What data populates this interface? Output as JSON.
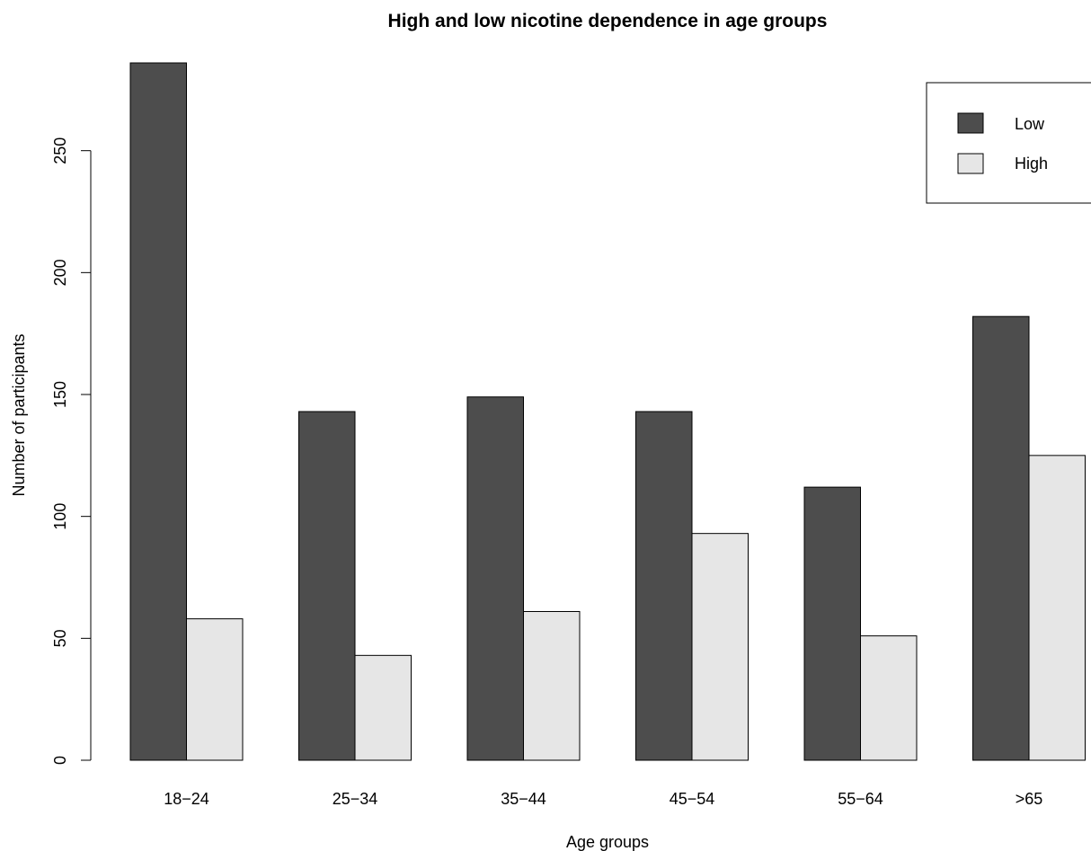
{
  "chart_data": {
    "type": "bar",
    "title": "High and low nicotine dependence in age groups",
    "xlabel": "Age groups",
    "ylabel": "Number of participants",
    "categories": [
      "18−24",
      "25−34",
      "35−44",
      "45−54",
      "55−64",
      ">65"
    ],
    "series": [
      {
        "name": "Low",
        "color": "#4d4d4d",
        "values": [
          286,
          143,
          149,
          143,
          112,
          182
        ]
      },
      {
        "name": "High",
        "color": "#e6e6e6",
        "values": [
          58,
          43,
          61,
          93,
          51,
          125
        ]
      }
    ],
    "y_ticks": [
      0,
      50,
      100,
      150,
      200,
      250
    ],
    "ylim": [
      0,
      286
    ],
    "grid": false,
    "legend_position": "top-right",
    "stroke_color": "#000000"
  }
}
